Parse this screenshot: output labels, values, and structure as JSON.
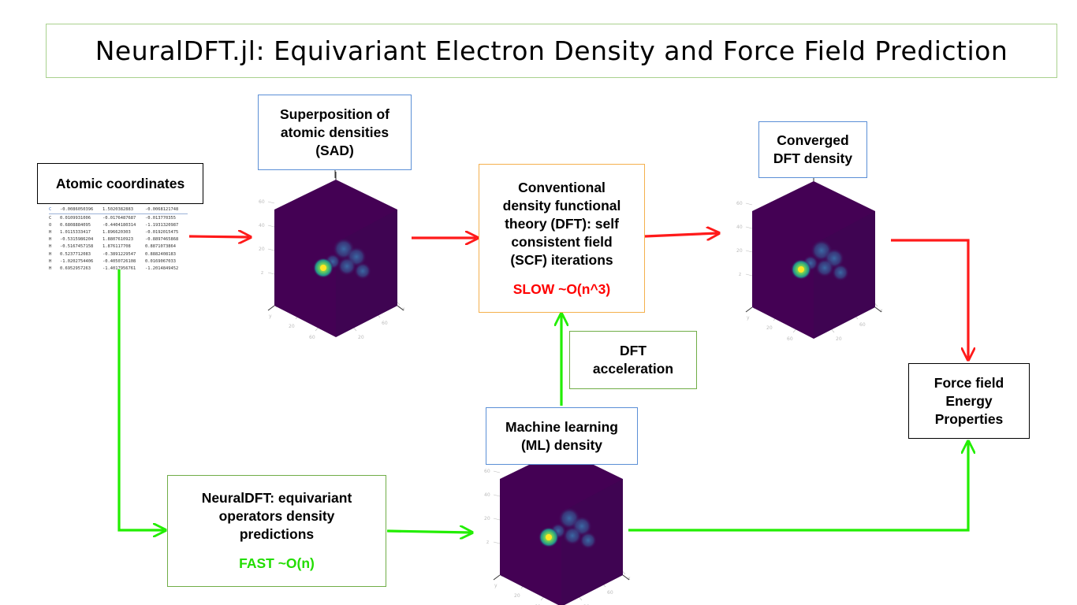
{
  "title": "NeuralDFT.jl: Equivariant Electron Density and Force Field Prediction",
  "boxes": {
    "atomic": "Atomic coordinates",
    "sad": [
      "Superposition of",
      "atomic densities",
      "(SAD)"
    ],
    "dft": [
      "Conventional",
      "density functional",
      "theory (DFT): self",
      "consistent field",
      "(SCF) iterations"
    ],
    "dft_speed": "SLOW ~O(n^3)",
    "converged": [
      "Converged",
      "DFT density"
    ],
    "accel": [
      "DFT",
      "acceleration"
    ],
    "ml": [
      "Machine learning",
      "(ML) density"
    ],
    "neural": [
      "NeuralDFT: equivariant",
      "operators density",
      "predictions"
    ],
    "neural_speed": "FAST ~O(n)",
    "force": [
      "Force field",
      "Energy",
      "Properties"
    ]
  },
  "coordinates": [
    [
      "C",
      "-0.0086050396",
      "1.5020382883",
      "-0.0068121748"
    ],
    [
      "C",
      "0.0109931006",
      "-0.0176487687",
      "-0.013770355"
    ],
    [
      "O",
      "0.6808884095",
      "-0.4404180314",
      "-1.1931320987"
    ],
    [
      "H",
      "1.0115333417",
      "1.896620303",
      "-0.0192015475"
    ],
    [
      "H",
      "-0.5315986204",
      "1.8807610923",
      "-0.8897465868"
    ],
    [
      "H",
      "-0.5167457158",
      "1.876117708",
      "0.8871073864"
    ],
    [
      "H",
      "0.5237712083",
      "-0.3891229547",
      "0.8882408183"
    ],
    [
      "H",
      "-1.0202754406",
      "-0.4050726108",
      "0.0169067033"
    ],
    [
      "H",
      "0.6952957263",
      "-1.4017956761",
      "-1.2014849452"
    ]
  ],
  "colors": {
    "red_arrow": "#ff1a1a",
    "green_arrow": "#22ee00",
    "cube_dark": "#440154",
    "cube_side": "#3b0a52",
    "hotspot": "#fde725"
  },
  "icons": {
    "cube": "viridis-density-cube-icon"
  }
}
